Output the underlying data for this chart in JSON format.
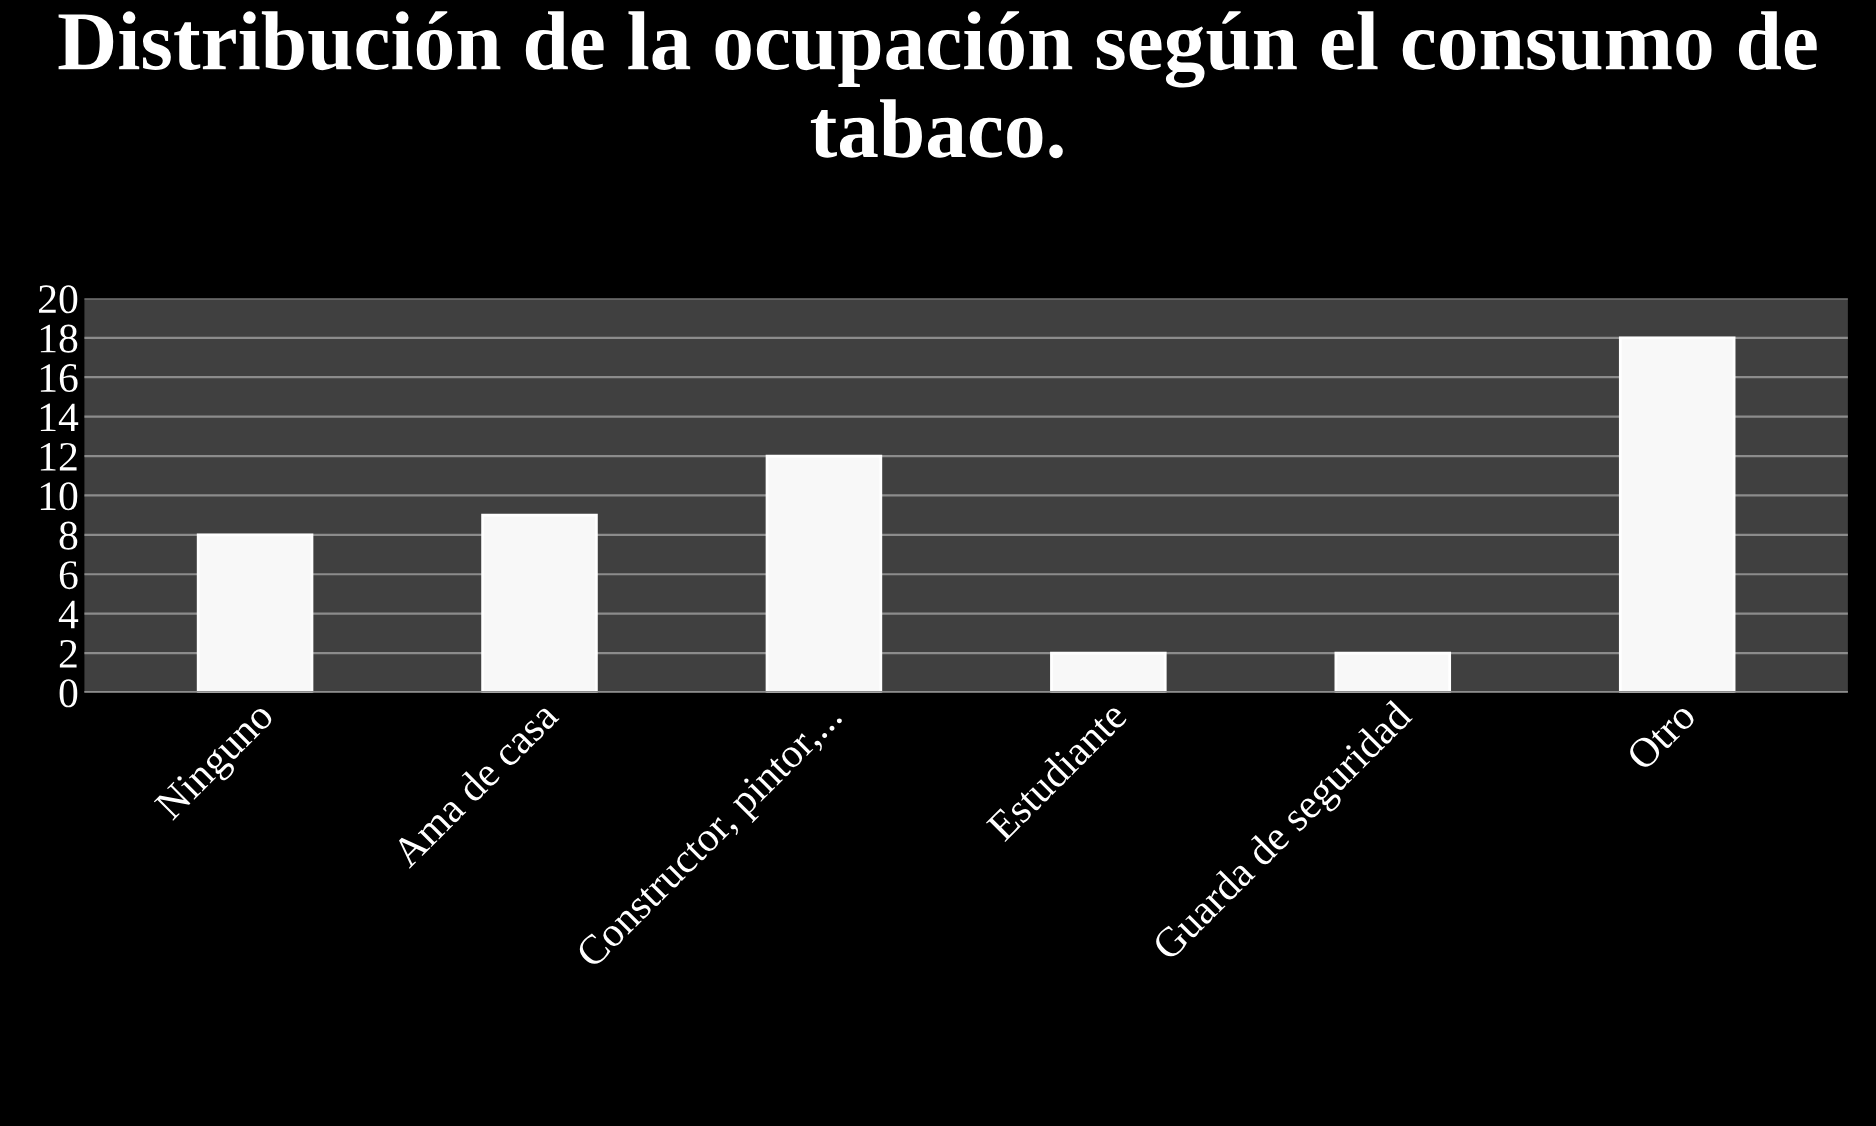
{
  "chart_data": {
    "type": "bar",
    "title": "Distribución de la ocupación según el consumo de tabaco.",
    "categories": [
      "Ninguno",
      "Ama de casa",
      "Constructor, pintor,...",
      "Estudiante",
      "Guarda de seguridad",
      "Otro"
    ],
    "values": [
      8,
      9,
      12,
      2,
      2,
      18
    ],
    "color": "#f8f8f8",
    "ylim": [
      0,
      20
    ],
    "yticks": [
      0,
      2,
      4,
      6,
      8,
      10,
      12,
      14,
      16,
      18,
      20
    ],
    "grid": "y"
  }
}
